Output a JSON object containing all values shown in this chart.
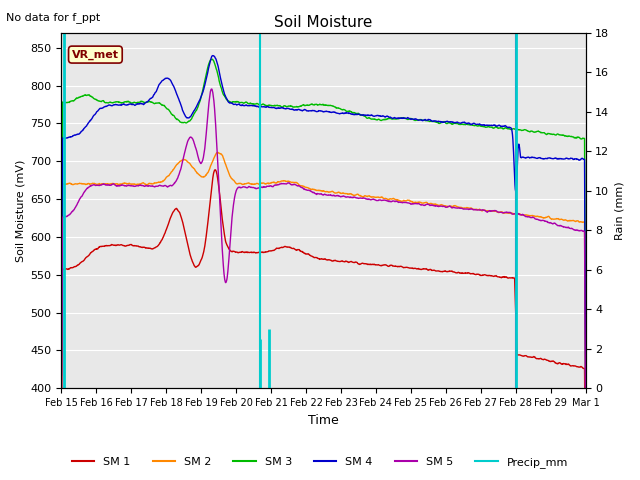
{
  "title": "Soil Moisture",
  "subtitle": "No data for f_ppt",
  "ylabel_left": "Soil Moisture (mV)",
  "ylabel_right": "Rain (mm)",
  "xlabel": "Time",
  "ylim_left": [
    400,
    870
  ],
  "ylim_right": [
    0,
    18
  ],
  "yticks_left": [
    400,
    450,
    500,
    550,
    600,
    650,
    700,
    750,
    800,
    850
  ],
  "yticks_right": [
    0,
    2,
    4,
    6,
    8,
    10,
    12,
    14,
    16,
    18
  ],
  "bg_color": "#e8e8e8",
  "fig_bg": "#ffffff",
  "vr_met_label": "VR_met",
  "vr_met_box_color": "#ffffcc",
  "vr_met_text_color": "#800000",
  "vr_met_border_color": "#800000",
  "colors": {
    "SM1": "#cc0000",
    "SM2": "#ff8800",
    "SM3": "#00bb00",
    "SM4": "#0000cc",
    "SM5": "#aa00aa",
    "Precip": "#00cccc"
  },
  "legend_labels": [
    "SM 1",
    "SM 2",
    "SM 3",
    "SM 4",
    "SM 5",
    "Precip_mm"
  ],
  "xtick_labels": [
    "Feb 15",
    "Feb 16",
    "Feb 17",
    "Feb 18",
    "Feb 19",
    "Feb 20",
    "Feb 21",
    "Feb 22",
    "Feb 23",
    "Feb 24",
    "Feb 25",
    "Feb 26",
    "Feb 27",
    "Feb 28",
    "Feb 29",
    "Mar 1"
  ],
  "cyan_vline_x": 5.67,
  "magenta_vline_x": 13.0,
  "figsize": [
    6.4,
    4.8
  ],
  "dpi": 100
}
